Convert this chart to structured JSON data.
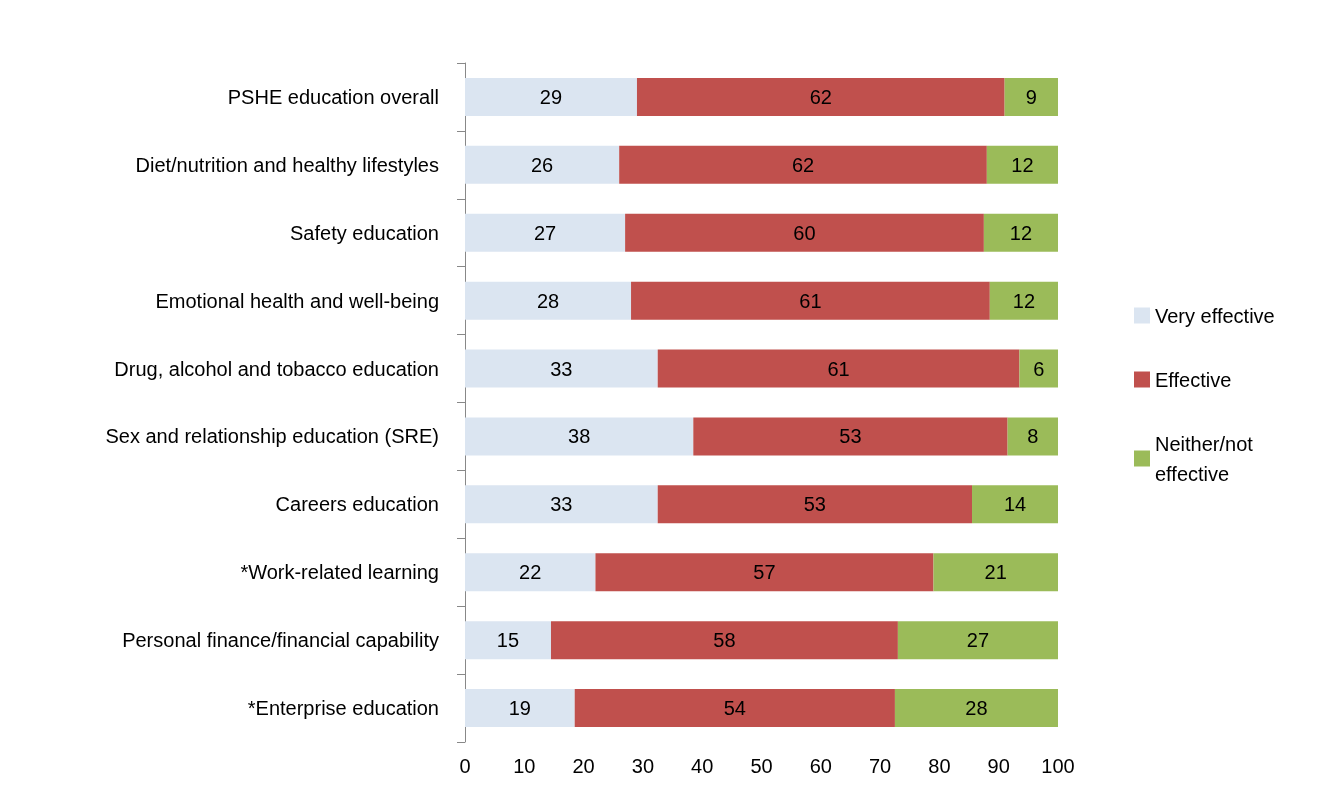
{
  "chart_data": {
    "type": "bar",
    "orientation": "horizontal",
    "stacked": true,
    "categories": [
      "PSHE education overall",
      "Diet/nutrition and healthy lifestyles",
      "Safety education",
      "Emotional health and well-being",
      "Drug, alcohol and tobacco education",
      "Sex and relationship education (SRE)",
      "Careers education",
      "*Work-related learning",
      "Personal finance/financial capability",
      "*Enterprise education"
    ],
    "series": [
      {
        "name": "Very effective",
        "color": "#dbe5f1",
        "values": [
          29,
          26,
          27,
          28,
          32.5,
          38.5,
          32.5,
          22,
          14.5,
          18.5
        ],
        "value_labels": [
          "29",
          "26",
          "27",
          "28",
          "33",
          "38",
          "33",
          "22",
          "15",
          "19"
        ]
      },
      {
        "name": "Effective",
        "color": "#c0504d",
        "values": [
          62,
          62,
          60.5,
          60.5,
          61,
          53,
          53,
          57,
          58.5,
          54
        ],
        "value_labels": [
          "62",
          "62",
          "60",
          "61",
          "61",
          "53",
          "53",
          "57",
          "58",
          "54"
        ]
      },
      {
        "name": "Neither/not effective",
        "color": "#9bbb59",
        "values": [
          9,
          12,
          12.5,
          11.5,
          6.5,
          8.5,
          14.5,
          21,
          27,
          27.5
        ],
        "value_labels": [
          "9",
          "12",
          "12",
          "12",
          "6",
          "8",
          "14",
          "21",
          "27",
          "28"
        ]
      }
    ],
    "xlim": [
      0,
      100
    ],
    "xticks": [
      0,
      10,
      20,
      30,
      40,
      50,
      60,
      70,
      80,
      90,
      100
    ],
    "grid": false,
    "legend": "right"
  }
}
